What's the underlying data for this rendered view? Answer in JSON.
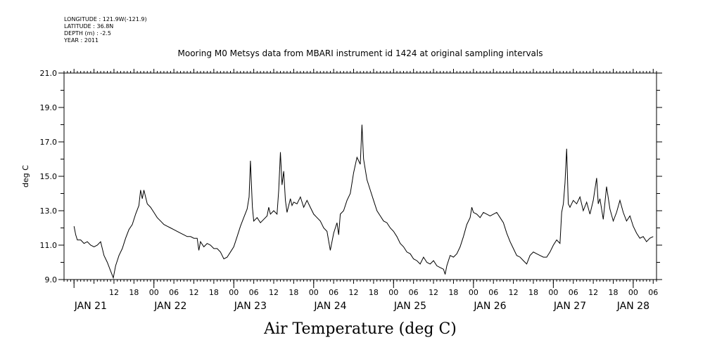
{
  "header": {
    "lines": [
      "LONGITUDE : 121.9W(-121.9)",
      "LATITUDE : 36.8N",
      "DEPTH (m) : -2.5",
      "YEAR : 2011"
    ]
  },
  "chart_data": {
    "type": "line",
    "title": "Mooring M0 Metsys data from MBARI instrument id 1424 at original sampling intervals",
    "xlabel": "Air Temperature (deg C)",
    "ylabel": "deg C",
    "ylim": [
      9.0,
      21.0
    ],
    "yticks": [
      "9.0",
      "11.0",
      "13.0",
      "15.0",
      "17.0",
      "19.0",
      "21.0"
    ],
    "xlim_hours": [
      -3,
      175
    ],
    "hour_ticks": [
      {
        "h": 12,
        "label": "12"
      },
      {
        "h": 18,
        "label": "18"
      },
      {
        "h": 24,
        "label": "00"
      },
      {
        "h": 30,
        "label": "06"
      },
      {
        "h": 36,
        "label": "12"
      },
      {
        "h": 42,
        "label": "18"
      },
      {
        "h": 48,
        "label": "00"
      },
      {
        "h": 54,
        "label": "06"
      },
      {
        "h": 60,
        "label": "12"
      },
      {
        "h": 66,
        "label": "18"
      },
      {
        "h": 72,
        "label": "00"
      },
      {
        "h": 78,
        "label": "06"
      },
      {
        "h": 84,
        "label": "12"
      },
      {
        "h": 90,
        "label": "18"
      },
      {
        "h": 96,
        "label": "00"
      },
      {
        "h": 102,
        "label": "06"
      },
      {
        "h": 108,
        "label": "12"
      },
      {
        "h": 114,
        "label": "18"
      },
      {
        "h": 120,
        "label": "00"
      },
      {
        "h": 126,
        "label": "06"
      },
      {
        "h": 132,
        "label": "12"
      },
      {
        "h": 138,
        "label": "18"
      },
      {
        "h": 144,
        "label": "00"
      },
      {
        "h": 150,
        "label": "06"
      },
      {
        "h": 156,
        "label": "12"
      },
      {
        "h": 162,
        "label": "18"
      },
      {
        "h": 168,
        "label": "00"
      },
      {
        "h": 174,
        "label": "06"
      }
    ],
    "day_labels": [
      {
        "h": 5,
        "label": "JAN 21"
      },
      {
        "h": 29,
        "label": "JAN 22"
      },
      {
        "h": 53,
        "label": "JAN 23"
      },
      {
        "h": 77,
        "label": "JAN 24"
      },
      {
        "h": 101,
        "label": "JAN 25"
      },
      {
        "h": 125,
        "label": "JAN 26"
      },
      {
        "h": 149,
        "label": "JAN 27"
      },
      {
        "h": 168,
        "label": "JAN 28"
      }
    ],
    "series": [
      {
        "color": "#000000",
        "points": [
          [
            0.0,
            12.1
          ],
          [
            0.5,
            11.6
          ],
          [
            1.0,
            11.3
          ],
          [
            2.0,
            11.3
          ],
          [
            3.0,
            11.1
          ],
          [
            4.0,
            11.2
          ],
          [
            5.0,
            11.0
          ],
          [
            6.0,
            10.9
          ],
          [
            7.0,
            11.0
          ],
          [
            8.0,
            11.2
          ],
          [
            9.0,
            10.4
          ],
          [
            10.0,
            10.0
          ],
          [
            11.0,
            9.5
          ],
          [
            11.8,
            9.1
          ],
          [
            12.5,
            9.8
          ],
          [
            13.5,
            10.4
          ],
          [
            14.5,
            10.8
          ],
          [
            15.5,
            11.4
          ],
          [
            16.5,
            11.9
          ],
          [
            17.5,
            12.2
          ],
          [
            18.5,
            12.8
          ],
          [
            19.5,
            13.3
          ],
          [
            20.0,
            14.2
          ],
          [
            20.5,
            13.7
          ],
          [
            21.0,
            14.2
          ],
          [
            22.0,
            13.4
          ],
          [
            23.0,
            13.2
          ],
          [
            24.0,
            12.9
          ],
          [
            25.0,
            12.6
          ],
          [
            26.0,
            12.4
          ],
          [
            27.0,
            12.2
          ],
          [
            28.0,
            12.1
          ],
          [
            29.0,
            12.0
          ],
          [
            30.0,
            11.9
          ],
          [
            31.0,
            11.8
          ],
          [
            32.0,
            11.7
          ],
          [
            33.0,
            11.6
          ],
          [
            34.0,
            11.5
          ],
          [
            35.0,
            11.5
          ],
          [
            36.0,
            11.4
          ],
          [
            37.0,
            11.4
          ],
          [
            37.5,
            10.7
          ],
          [
            38.0,
            11.2
          ],
          [
            39.0,
            10.9
          ],
          [
            40.0,
            11.1
          ],
          [
            41.0,
            11.0
          ],
          [
            42.0,
            10.8
          ],
          [
            43.0,
            10.8
          ],
          [
            44.0,
            10.6
          ],
          [
            45.0,
            10.2
          ],
          [
            46.0,
            10.3
          ],
          [
            47.0,
            10.6
          ],
          [
            48.0,
            10.9
          ],
          [
            49.0,
            11.5
          ],
          [
            50.0,
            12.1
          ],
          [
            51.0,
            12.6
          ],
          [
            52.0,
            13.1
          ],
          [
            52.6,
            13.8
          ],
          [
            53.0,
            15.9
          ],
          [
            53.6,
            13.2
          ],
          [
            54.0,
            12.4
          ],
          [
            55.0,
            12.6
          ],
          [
            56.0,
            12.3
          ],
          [
            57.0,
            12.5
          ],
          [
            58.0,
            12.7
          ],
          [
            58.5,
            13.2
          ],
          [
            59.0,
            12.8
          ],
          [
            60.0,
            13.0
          ],
          [
            61.0,
            12.8
          ],
          [
            61.5,
            14.2
          ],
          [
            62.0,
            16.4
          ],
          [
            62.5,
            14.5
          ],
          [
            63.0,
            15.3
          ],
          [
            63.5,
            13.6
          ],
          [
            64.0,
            12.9
          ],
          [
            65.0,
            13.7
          ],
          [
            65.5,
            13.3
          ],
          [
            66.0,
            13.5
          ],
          [
            67.0,
            13.4
          ],
          [
            68.0,
            13.8
          ],
          [
            69.0,
            13.2
          ],
          [
            70.0,
            13.6
          ],
          [
            71.0,
            13.2
          ],
          [
            72.0,
            12.8
          ],
          [
            73.0,
            12.6
          ],
          [
            74.0,
            12.4
          ],
          [
            75.0,
            12.0
          ],
          [
            76.0,
            11.8
          ],
          [
            77.0,
            10.7
          ],
          [
            78.0,
            11.7
          ],
          [
            79.0,
            12.3
          ],
          [
            79.5,
            11.6
          ],
          [
            80.0,
            12.8
          ],
          [
            81.0,
            13.0
          ],
          [
            82.0,
            13.6
          ],
          [
            83.0,
            14.0
          ],
          [
            84.0,
            15.2
          ],
          [
            85.0,
            16.1
          ],
          [
            86.0,
            15.7
          ],
          [
            86.5,
            18.0
          ],
          [
            87.0,
            16.0
          ],
          [
            88.0,
            14.8
          ],
          [
            89.0,
            14.2
          ],
          [
            90.0,
            13.6
          ],
          [
            91.0,
            13.0
          ],
          [
            92.0,
            12.7
          ],
          [
            93.0,
            12.4
          ],
          [
            94.0,
            12.3
          ],
          [
            95.0,
            12.0
          ],
          [
            96.0,
            11.8
          ],
          [
            97.0,
            11.5
          ],
          [
            98.0,
            11.1
          ],
          [
            99.0,
            10.9
          ],
          [
            100.0,
            10.6
          ],
          [
            101.0,
            10.5
          ],
          [
            102.0,
            10.2
          ],
          [
            103.0,
            10.1
          ],
          [
            104.0,
            9.9
          ],
          [
            105.0,
            10.3
          ],
          [
            106.0,
            10.0
          ],
          [
            107.0,
            9.9
          ],
          [
            108.0,
            10.1
          ],
          [
            109.0,
            9.8
          ],
          [
            110.0,
            9.7
          ],
          [
            111.0,
            9.6
          ],
          [
            111.5,
            9.3
          ],
          [
            112.0,
            9.8
          ],
          [
            113.0,
            10.4
          ],
          [
            114.0,
            10.3
          ],
          [
            115.0,
            10.5
          ],
          [
            116.0,
            10.9
          ],
          [
            117.0,
            11.5
          ],
          [
            118.0,
            12.2
          ],
          [
            119.0,
            12.6
          ],
          [
            119.5,
            13.2
          ],
          [
            120.0,
            12.9
          ],
          [
            121.0,
            12.8
          ],
          [
            122.0,
            12.6
          ],
          [
            123.0,
            12.9
          ],
          [
            124.0,
            12.8
          ],
          [
            125.0,
            12.7
          ],
          [
            126.0,
            12.8
          ],
          [
            127.0,
            12.9
          ],
          [
            128.0,
            12.6
          ],
          [
            129.0,
            12.3
          ],
          [
            130.0,
            11.7
          ],
          [
            131.0,
            11.2
          ],
          [
            132.0,
            10.8
          ],
          [
            133.0,
            10.4
          ],
          [
            134.0,
            10.3
          ],
          [
            135.0,
            10.1
          ],
          [
            136.0,
            9.9
          ],
          [
            137.0,
            10.4
          ],
          [
            138.0,
            10.6
          ],
          [
            139.0,
            10.5
          ],
          [
            140.0,
            10.4
          ],
          [
            141.0,
            10.3
          ],
          [
            142.0,
            10.3
          ],
          [
            143.0,
            10.6
          ],
          [
            144.0,
            11.0
          ],
          [
            145.0,
            11.3
          ],
          [
            146.0,
            11.1
          ],
          [
            146.5,
            12.9
          ],
          [
            147.0,
            13.4
          ],
          [
            147.5,
            14.6
          ],
          [
            148.0,
            16.6
          ],
          [
            148.5,
            13.4
          ],
          [
            149.0,
            13.2
          ],
          [
            150.0,
            13.6
          ],
          [
            151.0,
            13.4
          ],
          [
            152.0,
            13.8
          ],
          [
            153.0,
            13.0
          ],
          [
            154.0,
            13.5
          ],
          [
            155.0,
            12.8
          ],
          [
            156.0,
            13.6
          ],
          [
            157.0,
            14.9
          ],
          [
            157.5,
            13.4
          ],
          [
            158.0,
            13.7
          ],
          [
            159.0,
            12.5
          ],
          [
            160.0,
            14.4
          ],
          [
            161.0,
            13.1
          ],
          [
            162.0,
            12.4
          ],
          [
            163.0,
            12.9
          ],
          [
            164.0,
            13.6
          ],
          [
            165.0,
            12.9
          ],
          [
            166.0,
            12.4
          ],
          [
            167.0,
            12.7
          ],
          [
            168.0,
            12.1
          ],
          [
            169.0,
            11.7
          ],
          [
            170.0,
            11.4
          ],
          [
            171.0,
            11.5
          ],
          [
            172.0,
            11.2
          ],
          [
            173.0,
            11.4
          ],
          [
            174.0,
            11.5
          ]
        ]
      }
    ]
  }
}
